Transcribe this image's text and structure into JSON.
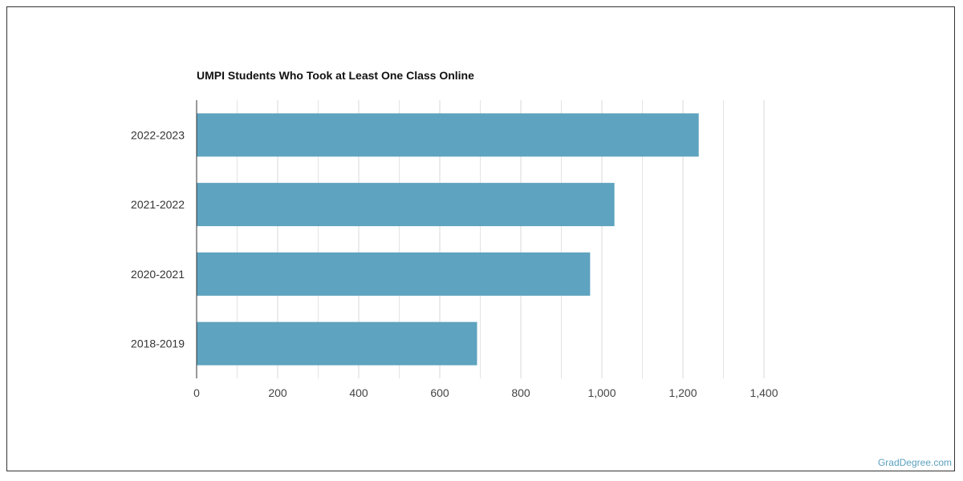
{
  "watermark": "GradDegree.com",
  "colors": {
    "bar": "#5ea3bf",
    "grid": "#d9d9d9",
    "axis": "#333333"
  },
  "chart_data": {
    "type": "bar",
    "orientation": "horizontal",
    "title": "UMPI Students Who Took at Least One Class Online",
    "xlabel": "",
    "ylabel": "",
    "categories": [
      "2022-2023",
      "2021-2022",
      "2020-2021",
      "2018-2019"
    ],
    "values": [
      1239,
      1031,
      971,
      692
    ],
    "xlim": [
      0,
      1400
    ],
    "xticks": [
      0,
      200,
      400,
      600,
      800,
      1000,
      1200,
      1400
    ],
    "xtick_labels": [
      "0",
      "200",
      "400",
      "600",
      "800",
      "1,000",
      "1,200",
      "1,400"
    ],
    "grid": true
  }
}
